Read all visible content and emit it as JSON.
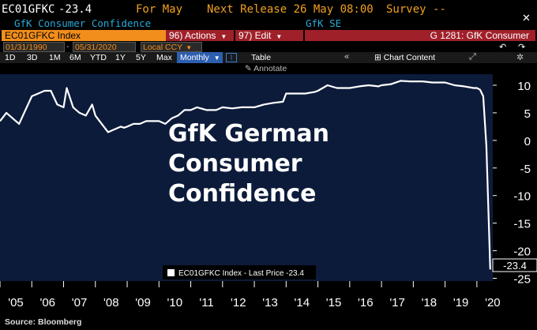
{
  "header": {
    "ticker": "EC01GFKC",
    "last_value": "-23.4",
    "for_label": "For May",
    "release_label": "Next Release 26 May 08:00",
    "survey_label": "Survey --",
    "subtitle": "GfK Consumer Confidence",
    "source_name": "GfK SE"
  },
  "toolbar": {
    "security": "EC01GFKC Index",
    "actions_label": "96) Actions",
    "edit_label": "97) Edit",
    "graph_title": "G 1281: GfK Consumer"
  },
  "dates": {
    "start": "01/31/1990",
    "end": "05/31/2020",
    "currency": "Local CCY"
  },
  "periods": [
    "1D",
    "3D",
    "1M",
    "6M",
    "YTD",
    "1Y",
    "5Y",
    "Max"
  ],
  "frequency": "Monthly",
  "table_label": "Table",
  "chart_content_label": "Chart Content",
  "annotate_label": "Annotate",
  "chart_data": {
    "type": "line",
    "title": "GfK German Consumer Confidence",
    "series": [
      {
        "name": "EC01GFKC Index - Last Price -23.4",
        "x": [
          2005.0,
          2005.2,
          2005.4,
          2005.6,
          2005.8,
          2006.0,
          2006.2,
          2006.4,
          2006.6,
          2006.8,
          2007.0,
          2007.1,
          2007.3,
          2007.5,
          2007.7,
          2007.9,
          2008.0,
          2008.2,
          2008.4,
          2008.6,
          2008.8,
          2008.9,
          2009.0,
          2009.2,
          2009.4,
          2009.6,
          2009.8,
          2010.0,
          2010.2,
          2010.4,
          2010.6,
          2010.8,
          2011.0,
          2011.2,
          2011.5,
          2011.8,
          2012.0,
          2012.3,
          2012.6,
          2012.9,
          2013.0,
          2013.3,
          2013.6,
          2013.9,
          2014.0,
          2014.3,
          2014.6,
          2014.9,
          2015.0,
          2015.3,
          2015.6,
          2015.9,
          2016.0,
          2016.3,
          2016.6,
          2016.9,
          2017.0,
          2017.3,
          2017.6,
          2017.9,
          2018.0,
          2018.3,
          2018.6,
          2018.9,
          2019.0,
          2019.3,
          2019.6,
          2019.9,
          2020.0,
          2020.1,
          2020.2,
          2020.3,
          2020.42
        ],
        "values": [
          3.5,
          5.0,
          4.0,
          3.0,
          5.5,
          8.0,
          8.5,
          9.0,
          9.0,
          6.5,
          6.0,
          9.5,
          6.0,
          5.0,
          4.5,
          6.5,
          4.5,
          3.0,
          1.5,
          2.0,
          2.5,
          2.3,
          2.5,
          3.0,
          3.0,
          3.5,
          3.5,
          3.5,
          3.0,
          4.0,
          4.5,
          5.5,
          5.5,
          6.0,
          5.5,
          5.5,
          6.0,
          5.8,
          6.0,
          6.0,
          6.0,
          6.5,
          6.8,
          7.0,
          8.5,
          8.5,
          8.5,
          8.8,
          9.0,
          10.0,
          9.5,
          9.5,
          9.5,
          9.8,
          10.0,
          9.8,
          10.0,
          10.2,
          10.8,
          10.7,
          10.7,
          10.7,
          10.5,
          10.5,
          10.5,
          10.0,
          9.8,
          9.5,
          9.5,
          9.2,
          8.0,
          -1.0,
          -23.4
        ]
      }
    ],
    "x_ticks": [
      "'05",
      "'06",
      "'07",
      "'08",
      "'09",
      "'10",
      "'11",
      "'12",
      "'13",
      "'14",
      "'15",
      "'16",
      "'17",
      "'18",
      "'19",
      "'20"
    ],
    "y_ticks": [
      10,
      5,
      0,
      -5,
      -10,
      -15,
      -20,
      -25
    ],
    "ylim": [
      -25.5,
      12
    ],
    "last_label": "-23.4",
    "legend_label": "EC01GFKC Index - Last Price -23.4",
    "background": "#0c1b3a",
    "line_color": "#ffffff",
    "grid": false,
    "legend_position": "bottom-center"
  },
  "footer": {
    "source": "Source: Bloomberg"
  }
}
